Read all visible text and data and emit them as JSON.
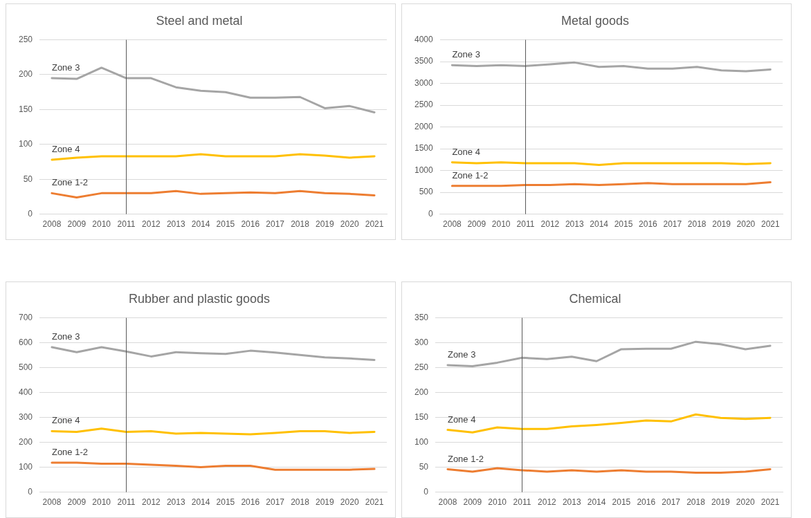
{
  "chart_data": [
    {
      "type": "line",
      "title": "Steel and metal",
      "categories": [
        "2008",
        "2009",
        "2010",
        "2011",
        "2012",
        "2013",
        "2014",
        "2015",
        "2016",
        "2017",
        "2018",
        "2019",
        "2020",
        "2021"
      ],
      "ylim": [
        0,
        250
      ],
      "yticks": [
        0,
        50,
        100,
        150,
        200,
        250
      ],
      "grid": "y",
      "legend": false,
      "ref_lines": [
        {
          "axis": "x",
          "value": "2011",
          "color": "#595959"
        }
      ],
      "series": [
        {
          "name": "Zone 3",
          "color": "#a5a5a5",
          "values": [
            195,
            194,
            210,
            195,
            195,
            182,
            177,
            175,
            167,
            167,
            168,
            152,
            155,
            146
          ]
        },
        {
          "name": "Zone 4",
          "color": "#ffc000",
          "values": [
            78,
            81,
            83,
            83,
            83,
            83,
            86,
            83,
            83,
            83,
            86,
            84,
            81,
            83
          ]
        },
        {
          "name": "Zone 1-2",
          "color": "#ed7d31",
          "values": [
            30,
            24,
            30,
            30,
            30,
            33,
            29,
            30,
            31,
            30,
            33,
            30,
            29,
            27
          ]
        }
      ]
    },
    {
      "type": "line",
      "title": "Metal goods",
      "categories": [
        "2008",
        "2009",
        "2010",
        "2011",
        "2012",
        "2013",
        "2014",
        "2015",
        "2016",
        "2017",
        "2018",
        "2019",
        "2020",
        "2021"
      ],
      "ylim": [
        0,
        4000
      ],
      "yticks": [
        0,
        500,
        1000,
        1500,
        2000,
        2500,
        3000,
        3500,
        4000
      ],
      "grid": "y",
      "legend": false,
      "ref_lines": [
        {
          "axis": "x",
          "value": "2011",
          "color": "#595959"
        }
      ],
      "series": [
        {
          "name": "Zone 3",
          "color": "#a5a5a5",
          "values": [
            3420,
            3400,
            3420,
            3400,
            3440,
            3480,
            3380,
            3400,
            3340,
            3340,
            3380,
            3300,
            3280,
            3320
          ]
        },
        {
          "name": "Zone 4",
          "color": "#ffc000",
          "values": [
            1190,
            1170,
            1190,
            1170,
            1170,
            1170,
            1130,
            1170,
            1170,
            1170,
            1170,
            1170,
            1150,
            1170
          ]
        },
        {
          "name": "Zone 1-2",
          "color": "#ed7d31",
          "values": [
            650,
            650,
            650,
            670,
            670,
            690,
            670,
            690,
            710,
            690,
            690,
            690,
            690,
            730
          ]
        }
      ]
    },
    {
      "type": "line",
      "title": "Rubber and plastic goods",
      "categories": [
        "2008",
        "2009",
        "2010",
        "2011",
        "2012",
        "2013",
        "2014",
        "2015",
        "2016",
        "2017",
        "2018",
        "2019",
        "2020",
        "2021"
      ],
      "ylim": [
        0,
        700
      ],
      "yticks": [
        0,
        100,
        200,
        300,
        400,
        500,
        600,
        700
      ],
      "grid": "y",
      "legend": false,
      "ref_lines": [
        {
          "axis": "x",
          "value": "2011",
          "color": "#595959"
        }
      ],
      "series": [
        {
          "name": "Zone 3",
          "color": "#a5a5a5",
          "values": [
            582,
            562,
            582,
            565,
            545,
            562,
            558,
            555,
            568,
            561,
            551,
            541,
            537,
            531
          ]
        },
        {
          "name": "Zone 4",
          "color": "#ffc000",
          "values": [
            245,
            242,
            255,
            242,
            245,
            235,
            238,
            235,
            232,
            238,
            245,
            245,
            238,
            242
          ]
        },
        {
          "name": "Zone 1-2",
          "color": "#ed7d31",
          "values": [
            118,
            118,
            114,
            114,
            110,
            106,
            100,
            106,
            106,
            90,
            90,
            90,
            90,
            93
          ]
        }
      ]
    },
    {
      "type": "line",
      "title": "Chemical",
      "categories": [
        "2008",
        "2009",
        "2010",
        "2011",
        "2012",
        "2013",
        "2014",
        "2015",
        "2016",
        "2017",
        "2018",
        "2019",
        "2020",
        "2021"
      ],
      "ylim": [
        0,
        350
      ],
      "yticks": [
        0,
        50,
        100,
        150,
        200,
        250,
        300,
        350
      ],
      "grid": "y",
      "legend": false,
      "ref_lines": [
        {
          "axis": "x",
          "value": "2011",
          "color": "#595959"
        }
      ],
      "series": [
        {
          "name": "Zone 3",
          "color": "#a5a5a5",
          "values": [
            255,
            253,
            260,
            270,
            267,
            272,
            263,
            287,
            288,
            288,
            302,
            297,
            287,
            294
          ]
        },
        {
          "name": "Zone 4",
          "color": "#ffc000",
          "values": [
            125,
            120,
            130,
            127,
            127,
            132,
            135,
            139,
            144,
            142,
            156,
            149,
            147,
            149
          ]
        },
        {
          "name": "Zone 1-2",
          "color": "#ed7d31",
          "values": [
            46,
            41,
            48,
            44,
            41,
            44,
            41,
            44,
            41,
            41,
            39,
            39,
            41,
            46
          ]
        }
      ]
    }
  ]
}
